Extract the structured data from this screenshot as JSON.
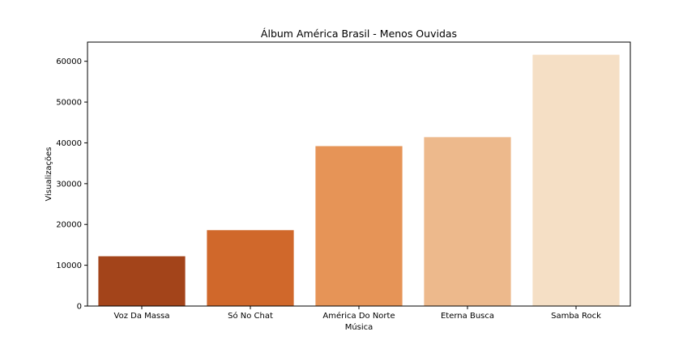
{
  "chart_data": {
    "type": "bar",
    "title": "Álbum América Brasil - Menos Ouvidas",
    "xlabel": "Música",
    "ylabel": "Visualizações",
    "categories": [
      "Voz Da Massa",
      "Só No Chat",
      "América Do Norte",
      "Eterna Busca",
      "Samba Rock"
    ],
    "values": [
      12200,
      18600,
      39200,
      41400,
      61600
    ],
    "colors": [
      "#a3441a",
      "#d0682b",
      "#e69457",
      "#edb98c",
      "#f5dfc5"
    ],
    "ylim": [
      0,
      64700
    ],
    "yticks": [
      0,
      10000,
      20000,
      30000,
      40000,
      50000,
      60000
    ],
    "grid": false,
    "legend": "none"
  }
}
